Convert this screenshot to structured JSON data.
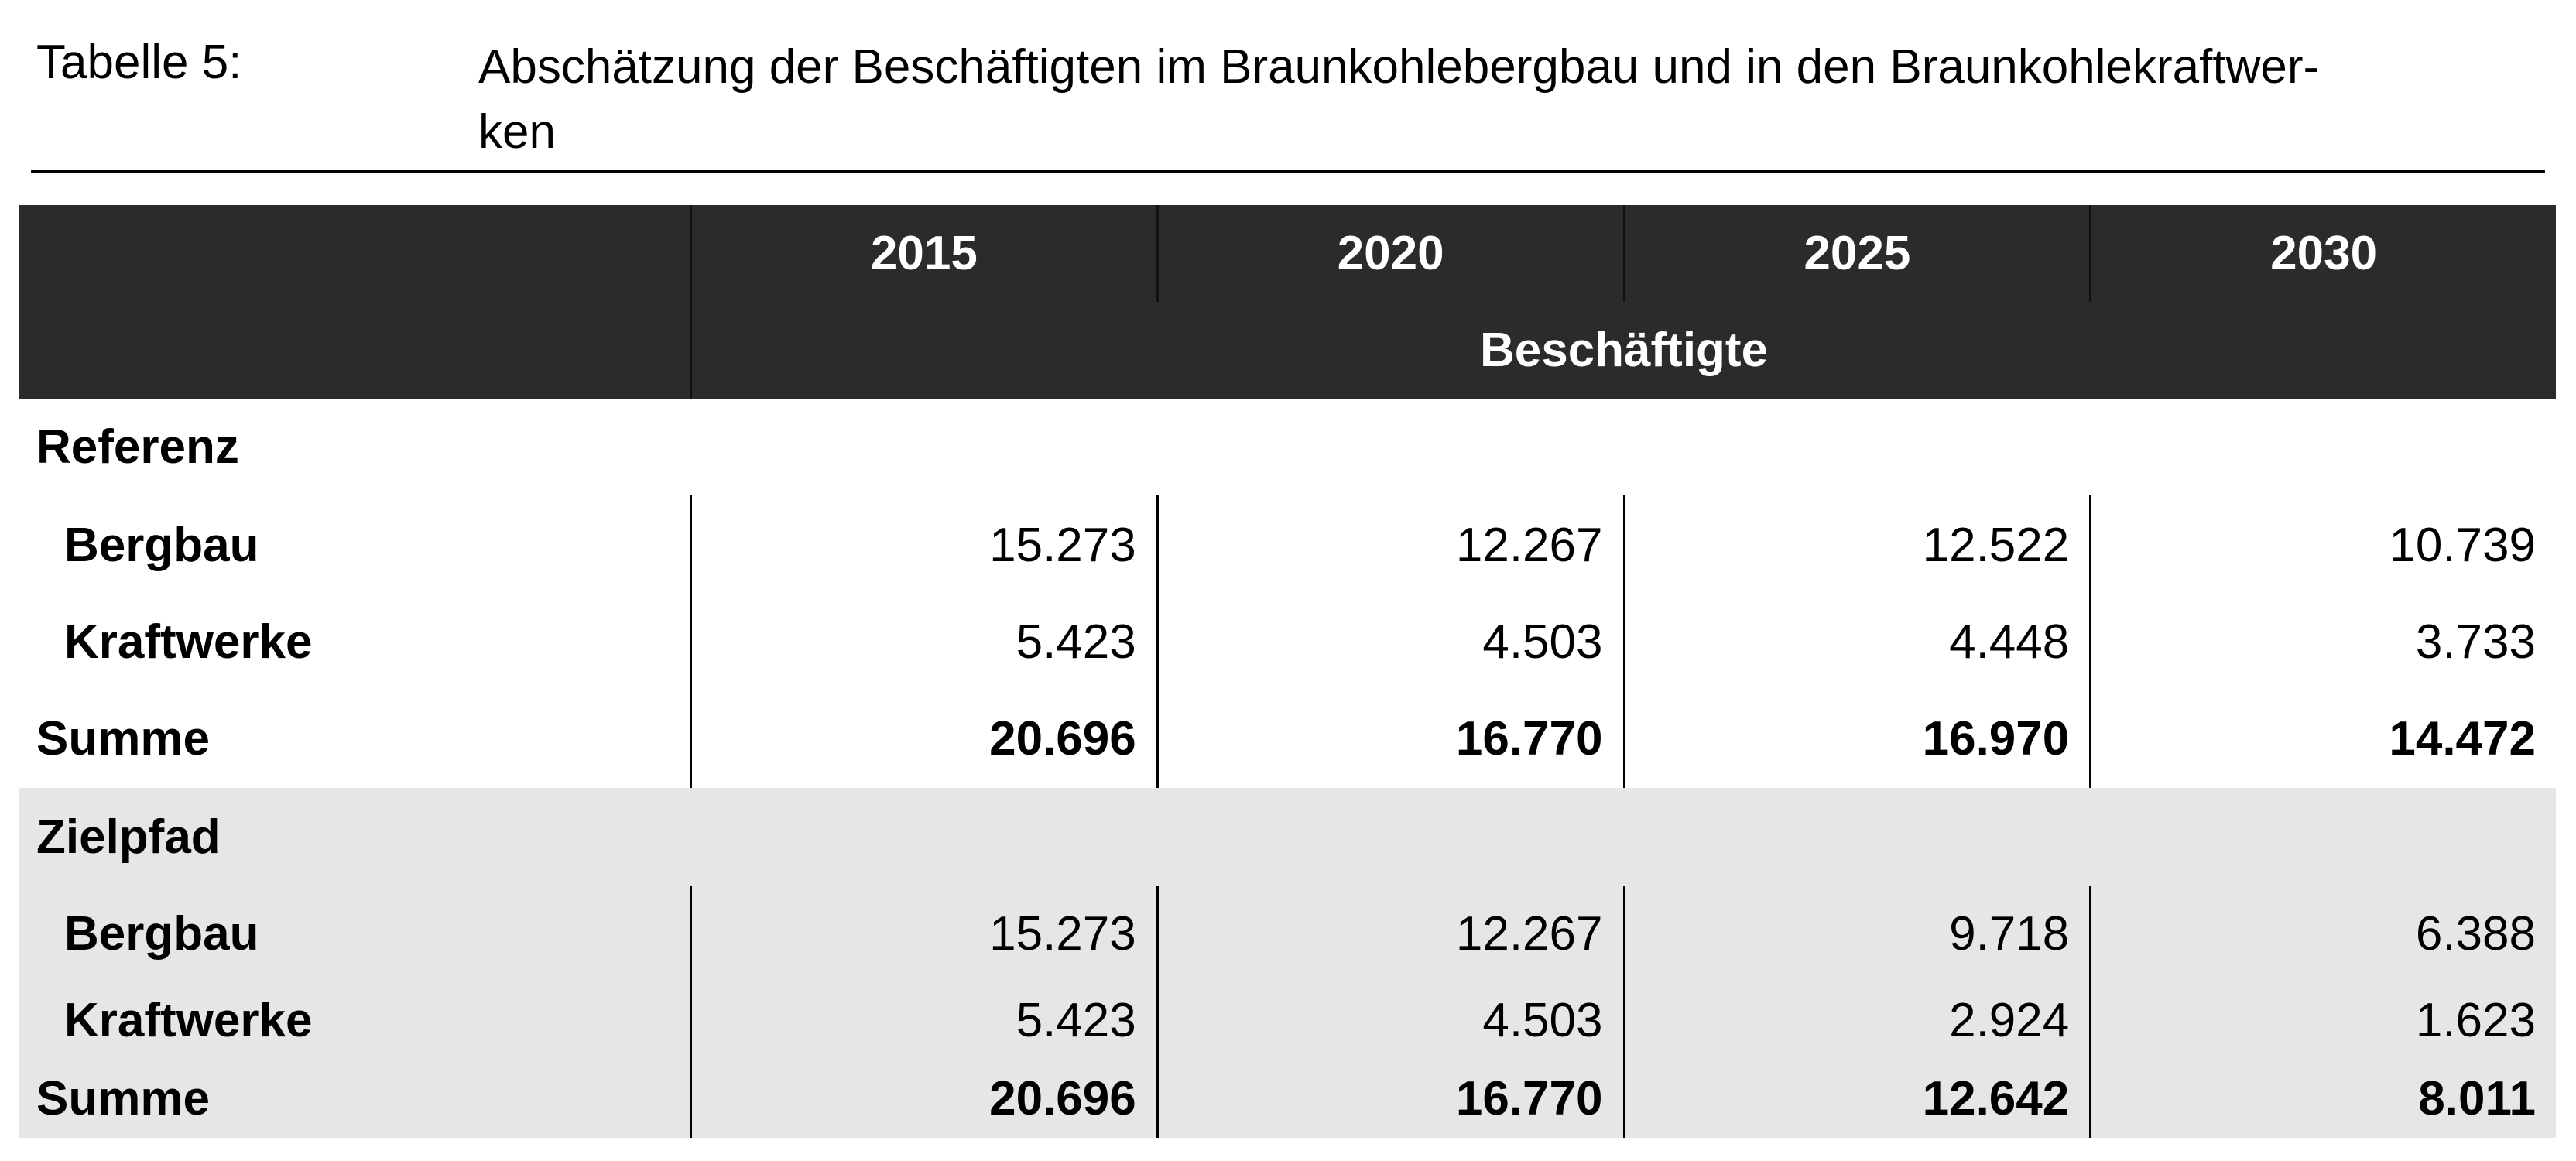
{
  "caption": {
    "label": "Tabelle 5:",
    "title_lines": [
      "Abschätzung der Beschäftigten im Braunkohlebergbau und in den Braunkohlekraftwer-",
      "ken"
    ]
  },
  "table": {
    "header": {
      "years": [
        "2015",
        "2020",
        "2025",
        "2030"
      ],
      "unit": "Beschäftigte"
    },
    "sections": [
      {
        "name": "Referenz",
        "rows": [
          {
            "label": "Bergbau",
            "values": [
              "15.273",
              "12.267",
              "12.522",
              "10.739"
            ]
          },
          {
            "label": "Kraftwerke",
            "values": [
              "5.423",
              "4.503",
              "4.448",
              "3.733"
            ]
          }
        ],
        "total": {
          "label": "Summe",
          "values": [
            "20.696",
            "16.770",
            "16.970",
            "14.472"
          ]
        }
      },
      {
        "name": "Zielpfad",
        "rows": [
          {
            "label": "Bergbau",
            "values": [
              "15.273",
              "12.267",
              "9.718",
              "6.388"
            ]
          },
          {
            "label": "Kraftwerke",
            "values": [
              "5.423",
              "4.503",
              "2.924",
              "1.623"
            ]
          }
        ],
        "total": {
          "label": "Summe",
          "values": [
            "20.696",
            "16.770",
            "12.642",
            "8.011"
          ]
        }
      }
    ]
  }
}
